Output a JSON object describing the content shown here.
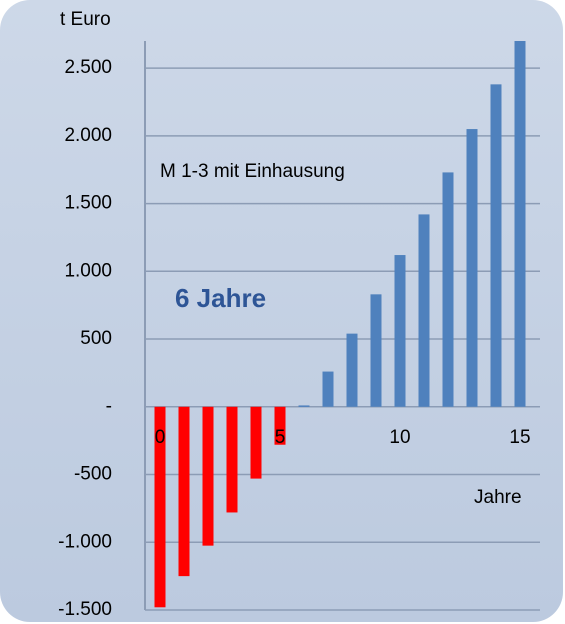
{
  "chart_data": {
    "type": "bar",
    "y_label": "t Euro",
    "x_label": "Jahre",
    "annotations": [
      "M 1-3 mit Einhausung",
      "6 Jahre"
    ],
    "categories": [
      "0",
      null,
      null,
      null,
      null,
      "5",
      null,
      null,
      null,
      null,
      "10",
      null,
      null,
      null,
      null,
      "15"
    ],
    "values": [
      -1480,
      -1250,
      -1025,
      -780,
      -530,
      -280,
      10,
      260,
      540,
      830,
      1120,
      1420,
      1730,
      2050,
      2380,
      2700
    ],
    "color": "#4f81bd",
    "negative_color": "#ff0000",
    "ylim": [
      -1500,
      2700
    ],
    "yticks": [
      {
        "value": -1500,
        "label": "-1.500"
      },
      {
        "value": -1000,
        "label": "-1.000"
      },
      -500,
      {
        "value": 0,
        "label": "-"
      },
      500,
      {
        "value": 1000,
        "label": "1.000"
      },
      {
        "value": 1500,
        "label": "1.500"
      },
      {
        "value": 2000,
        "label": "2.000"
      },
      {
        "value": 2500,
        "label": "2.500"
      }
    ],
    "grid": true
  }
}
